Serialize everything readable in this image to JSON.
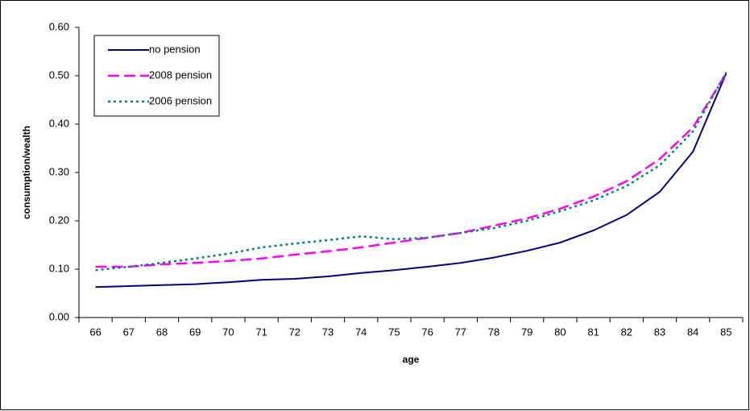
{
  "chart_data": {
    "type": "line",
    "x_label": "age",
    "y_label": "consumption/wealth",
    "categories": [
      "66",
      "67",
      "68",
      "69",
      "70",
      "71",
      "72",
      "73",
      "74",
      "75",
      "76",
      "77",
      "78",
      "79",
      "80",
      "81",
      "82",
      "83",
      "84",
      "85"
    ],
    "series": [
      {
        "name": "no pension",
        "color": "#000080",
        "dash": "solid",
        "values": [
          0.063,
          0.065,
          0.067,
          0.069,
          0.073,
          0.078,
          0.08,
          0.085,
          0.092,
          0.098,
          0.105,
          0.113,
          0.124,
          0.138,
          0.155,
          0.18,
          0.212,
          0.26,
          0.343,
          0.505
        ]
      },
      {
        "name": "2008 pension",
        "color": "#ff00ff",
        "dash": "dashed",
        "values": [
          0.105,
          0.105,
          0.11,
          0.113,
          0.117,
          0.122,
          0.13,
          0.137,
          0.145,
          0.155,
          0.165,
          0.175,
          0.19,
          0.205,
          0.225,
          0.25,
          0.282,
          0.328,
          0.393,
          0.505
        ]
      },
      {
        "name": "2006 pension",
        "color": "#008080",
        "dash": "dotted",
        "values": [
          0.098,
          0.105,
          0.113,
          0.122,
          0.132,
          0.145,
          0.153,
          0.16,
          0.168,
          0.162,
          0.165,
          0.175,
          0.185,
          0.2,
          0.22,
          0.242,
          0.272,
          0.315,
          0.385,
          0.507
        ]
      }
    ],
    "ylim": [
      0,
      0.6
    ],
    "yticks": [
      {
        "value": 0,
        "label": "0.00"
      },
      {
        "value": 0.1,
        "label": "0.10"
      },
      {
        "value": 0.2,
        "label": "0.20"
      },
      {
        "value": 0.3,
        "label": "0.30"
      },
      {
        "value": 0.4,
        "label": "0.40"
      },
      {
        "value": 0.5,
        "label": "0.50"
      },
      {
        "value": 0.6,
        "label": "0.60"
      }
    ],
    "legend": "upper left",
    "grid": false
  }
}
